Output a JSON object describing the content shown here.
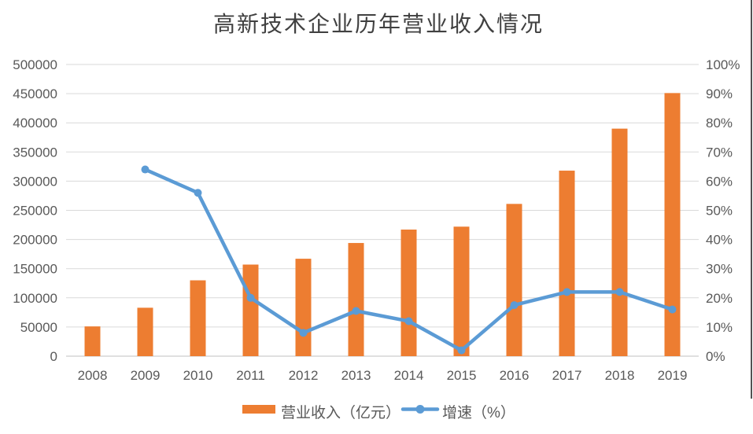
{
  "title": "高新技术企业历年营业收入情况",
  "legend": {
    "bar_label": "营业收入（亿元）",
    "line_label": "增速（%）"
  },
  "colors": {
    "bar": "#ED7D31",
    "line": "#5B9BD5",
    "grid": "#D9D9D9",
    "zero_line": "#D6D6D6",
    "axis_text": "#595959",
    "title_text": "#404040",
    "right_border": "#262626"
  },
  "chart_data": {
    "type": "bar",
    "subtype": "combo-bar-line-dual-axis",
    "title": "高新技术企业历年营业收入情况",
    "categories": [
      "2008",
      "2009",
      "2010",
      "2011",
      "2012",
      "2013",
      "2014",
      "2015",
      "2016",
      "2017",
      "2018",
      "2019"
    ],
    "series": [
      {
        "name": "营业收入（亿元）",
        "type": "bar",
        "axis": "left",
        "values": [
          51000,
          83000,
          130000,
          157000,
          167000,
          194000,
          217000,
          222000,
          261000,
          318000,
          390000,
          451000
        ]
      },
      {
        "name": "增速（%）",
        "type": "line",
        "axis": "right",
        "values": [
          null,
          64,
          56,
          20,
          8,
          15.5,
          12,
          2,
          17.5,
          22,
          22,
          16
        ]
      }
    ],
    "left_axis": {
      "range": [
        0,
        500000
      ],
      "step": 50000,
      "tick_labels": [
        "0",
        "50000",
        "100000",
        "150000",
        "200000",
        "250000",
        "300000",
        "350000",
        "400000",
        "450000",
        "500000"
      ]
    },
    "right_axis": {
      "range": [
        0,
        100
      ],
      "step": 10,
      "tick_labels": [
        "0%",
        "10%",
        "20%",
        "30%",
        "40%",
        "50%",
        "60%",
        "70%",
        "80%",
        "90%",
        "100%"
      ]
    },
    "grid": "horizontal-only",
    "legend_position": "bottom"
  }
}
